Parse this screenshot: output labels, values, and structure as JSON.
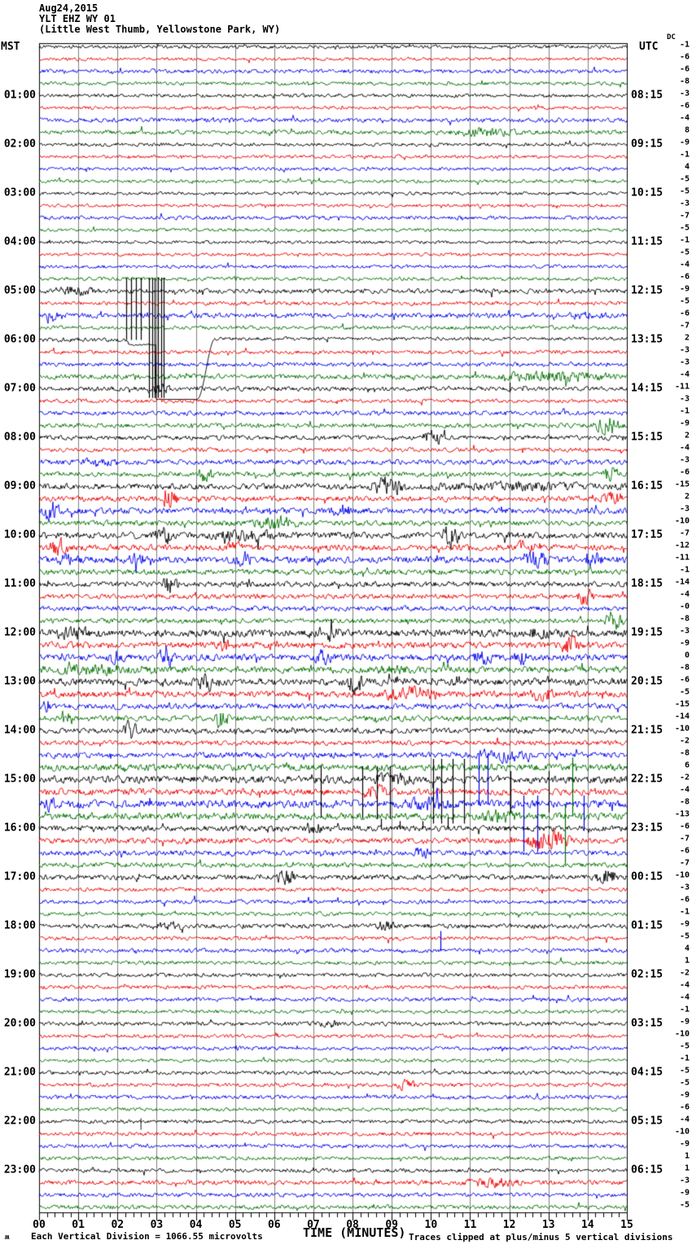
{
  "header": {
    "date": "Aug24,2015",
    "station": "YLT EHZ WY 01",
    "location": "(Little West Thumb, Yellowstone Park, WY)"
  },
  "corner_labels": {
    "left": "MST",
    "right": "UTC",
    "dc": "DC"
  },
  "footer": {
    "logo_glyph": "ʍ",
    "scale_note": "Each Vertical Division = 1066.55 microvolts",
    "clip_note": "Traces clipped at plus/minus 5 vertical divisions"
  },
  "colors": {
    "trace_cycle": [
      "#000000",
      "#ee0000",
      "#0000ee",
      "#007000"
    ],
    "grid": "#808080",
    "border": "#000000",
    "background": "#ffffff",
    "text": "#000000"
  },
  "chart_data": {
    "type": "line",
    "subtype": "seismogram-helicorder",
    "title": "Aug24,2015 YLT EHZ WY 01 (Little West Thumb, Yellowstone Park, WY)",
    "xlabel": "TIME (MINUTES)",
    "x_range_minutes": [
      0,
      15
    ],
    "x_ticks": [
      "00",
      "01",
      "02",
      "03",
      "04",
      "05",
      "06",
      "07",
      "08",
      "09",
      "10",
      "11",
      "12",
      "13",
      "14",
      "15"
    ],
    "minor_ticks_per_minute": 5,
    "lines_per_hour": 4,
    "clip_divisions": 5,
    "division_microvolts": "1066.55",
    "left_axis": {
      "label": "MST",
      "times": [
        "01:00",
        "02:00",
        "03:00",
        "04:00",
        "05:00",
        "06:00",
        "07:00",
        "08:00",
        "09:00",
        "10:00",
        "11:00",
        "12:00",
        "13:00",
        "14:00",
        "15:00",
        "16:00",
        "17:00",
        "18:00",
        "19:00",
        "20:00",
        "21:00",
        "22:00",
        "23:00"
      ]
    },
    "right_axis": {
      "label": "UTC",
      "times": [
        "08:15",
        "09:15",
        "10:15",
        "11:15",
        "12:15",
        "13:15",
        "14:15",
        "15:15",
        "16:15",
        "17:15",
        "18:15",
        "19:15",
        "20:15",
        "21:15",
        "22:15",
        "23:15",
        "00:15",
        "01:15",
        "02:15",
        "03:15",
        "04:15",
        "05:15",
        "06:15"
      ]
    },
    "notable_events": [
      "clipped telemetry spike cluster minutes 2.2-3.2 spanning 05:00-07:00 MST traces",
      "calibration step recovery on 06:00 MST trace near minute 4",
      "high microseism/noise activity 09:00-17:00 MST",
      "colored telemetry spikes minutes 7-14 on 14:30-16:45 MST traces"
    ],
    "rows": [
      {
        "dc": "-1",
        "a": 1.3
      },
      {
        "dc": "-6",
        "a": 1.2
      },
      {
        "dc": "-6",
        "a": 1.5
      },
      {
        "dc": "-8",
        "a": 1.3
      },
      {
        "dc": "-3",
        "a": 1.3
      },
      {
        "dc": "-6",
        "a": 1.2
      },
      {
        "dc": "-4",
        "a": 1.6
      },
      {
        "dc": "8",
        "a": 1.6,
        "b": [
          [
            10.4,
            12.3,
            2.6
          ]
        ]
      },
      {
        "dc": "-9",
        "a": 1.3
      },
      {
        "dc": "-1",
        "a": 1.2
      },
      {
        "dc": "4",
        "a": 1.2
      },
      {
        "dc": "-5",
        "a": 1.2
      },
      {
        "dc": "-5",
        "a": 1.2
      },
      {
        "dc": "-3",
        "a": 1.2
      },
      {
        "dc": "-7",
        "a": 1.4
      },
      {
        "dc": "-5",
        "a": 1.2
      },
      {
        "dc": "-1",
        "a": 1.2
      },
      {
        "dc": "-5",
        "a": 1.2
      },
      {
        "dc": "-4",
        "a": 1.3
      },
      {
        "dc": "-6",
        "a": 1.3
      },
      {
        "dc": "-9",
        "a": 1.7,
        "b": [
          [
            0,
            1.6,
            2.6
          ]
        ]
      },
      {
        "dc": "-5",
        "a": 1.4
      },
      {
        "dc": "-6",
        "a": 1.8,
        "b": [
          [
            0.1,
            0.5,
            3.5
          ],
          [
            13.4,
            14.6,
            2.4
          ]
        ]
      },
      {
        "dc": "-7",
        "a": 1.4
      },
      {
        "dc": "2",
        "a": 1.6,
        "cal": 1
      },
      {
        "dc": "-3",
        "a": 1.4
      },
      {
        "dc": "-3",
        "a": 1.6
      },
      {
        "dc": "-4",
        "a": 1.8,
        "b": [
          [
            11.4,
            14.9,
            3.0
          ]
        ]
      },
      {
        "dc": "-11",
        "a": 1.6,
        "b": [
          [
            2.7,
            3.4,
            3.0
          ]
        ]
      },
      {
        "dc": "-3",
        "a": 1.4
      },
      {
        "dc": "-1",
        "a": 1.6
      },
      {
        "dc": "-9",
        "a": 1.7,
        "b": [
          [
            14.1,
            14.95,
            4.5
          ]
        ]
      },
      {
        "dc": "2",
        "a": 1.7,
        "b": [
          [
            9.7,
            10.4,
            3.8
          ]
        ]
      },
      {
        "dc": "-4",
        "a": 1.5
      },
      {
        "dc": "-3",
        "a": 1.9,
        "b": [
          [
            1.0,
            2.1,
            2.6
          ]
        ]
      },
      {
        "dc": "-6",
        "a": 1.8,
        "b": [
          [
            4.05,
            4.5,
            4.5
          ],
          [
            14.3,
            14.9,
            4.0
          ]
        ]
      },
      {
        "dc": "-15",
        "a": 2.2,
        "b": [
          [
            8.4,
            9.4,
            5.0
          ],
          [
            9.4,
            15,
            3.0
          ]
        ]
      },
      {
        "dc": "2",
        "a": 2.0,
        "b": [
          [
            3.15,
            3.6,
            5.0
          ],
          [
            14.3,
            15,
            3.5
          ]
        ]
      },
      {
        "dc": "-3",
        "a": 2.2,
        "b": [
          [
            0.05,
            0.55,
            5.5
          ],
          [
            7.4,
            8.0,
            4.0
          ]
        ]
      },
      {
        "dc": "-10",
        "a": 2.0,
        "b": [
          [
            5.4,
            6.7,
            3.8
          ]
        ]
      },
      {
        "dc": "-7",
        "a": 2.4,
        "b": [
          [
            2.9,
            3.5,
            4.5
          ],
          [
            4.2,
            6.2,
            3.5
          ],
          [
            10.2,
            10.8,
            5.5
          ]
        ]
      },
      {
        "dc": "-12",
        "a": 2.2,
        "b": [
          [
            0.2,
            0.8,
            4.5
          ],
          [
            4.7,
            5.2,
            3.8
          ],
          [
            12.1,
            12.7,
            3.8
          ]
        ]
      },
      {
        "dc": "-11",
        "a": 2.4,
        "b": [
          [
            0.4,
            1.1,
            3.8
          ],
          [
            2.2,
            2.8,
            3.8
          ],
          [
            4.9,
            5.5,
            3.8
          ],
          [
            12.1,
            13.1,
            4.5
          ],
          [
            13.8,
            14.4,
            4.5
          ]
        ]
      },
      {
        "dc": "-1",
        "a": 2.0
      },
      {
        "dc": "-14",
        "a": 2.0,
        "b": [
          [
            3.1,
            3.6,
            4.8
          ]
        ]
      },
      {
        "dc": "-4",
        "a": 1.8,
        "b": [
          [
            13.7,
            14.2,
            4.5
          ]
        ]
      },
      {
        "dc": "-0",
        "a": 1.8
      },
      {
        "dc": "-8",
        "a": 1.8,
        "b": [
          [
            14.4,
            14.95,
            5.0
          ]
        ]
      },
      {
        "dc": "-3",
        "a": 2.7,
        "b": [
          [
            0.3,
            1.4,
            4.0
          ],
          [
            7.1,
            7.7,
            4.8
          ],
          [
            12.4,
            13.1,
            4.0
          ]
        ]
      },
      {
        "dc": "-9",
        "a": 2.4,
        "b": [
          [
            4.5,
            5.0,
            3.6
          ],
          [
            13.3,
            13.8,
            5.5
          ]
        ]
      },
      {
        "dc": "0",
        "a": 2.4,
        "b": [
          [
            1.7,
            2.2,
            4.0
          ],
          [
            3.0,
            3.5,
            5.5
          ],
          [
            7.0,
            7.5,
            4.2
          ],
          [
            11.0,
            11.6,
            4.2
          ],
          [
            12.1,
            12.5,
            4.2
          ]
        ]
      },
      {
        "dc": "-8",
        "a": 2.4,
        "b": [
          [
            0,
            3.1,
            3.4
          ],
          [
            8.4,
            9.6,
            3.2
          ]
        ]
      },
      {
        "dc": "-6",
        "a": 2.7,
        "b": [
          [
            4.0,
            4.5,
            5.0
          ],
          [
            7.8,
            8.3,
            6.0
          ]
        ]
      },
      {
        "dc": "-5",
        "a": 2.3,
        "b": [
          [
            8.7,
            10.3,
            4.2
          ],
          [
            12.5,
            13.2,
            4.2
          ]
        ]
      },
      {
        "dc": "-15",
        "a": 2.1,
        "b": [
          [
            0.05,
            0.35,
            4.0
          ]
        ]
      },
      {
        "dc": "-14",
        "a": 2.0,
        "b": [
          [
            0.5,
            0.9,
            4.5
          ],
          [
            4.4,
            4.9,
            4.5
          ]
        ]
      },
      {
        "dc": "-10",
        "a": 2.0,
        "b": [
          [
            2.1,
            2.6,
            4.8
          ]
        ]
      },
      {
        "dc": "-2",
        "a": 1.8
      },
      {
        "dc": "-8",
        "a": 2.2,
        "b": [
          [
            11.0,
            12.6,
            3.8
          ]
        ]
      },
      {
        "dc": "6",
        "a": 2.5
      },
      {
        "dc": "-2",
        "a": 2.7,
        "b": [
          [
            8.3,
            9.7,
            4.0
          ]
        ]
      },
      {
        "dc": "-4",
        "a": 2.4,
        "b": [
          [
            8.1,
            9.0,
            3.8
          ]
        ]
      },
      {
        "dc": "-8",
        "a": 2.8,
        "b": [
          [
            0,
            0.5,
            4.0
          ],
          [
            9.2,
            10.6,
            4.2
          ]
        ]
      },
      {
        "dc": "-13",
        "a": 2.6,
        "b": [
          [
            11.2,
            12.3,
            3.8
          ]
        ]
      },
      {
        "dc": "-6",
        "a": 2.1,
        "b": [
          [
            6.7,
            7.3,
            3.6
          ]
        ]
      },
      {
        "dc": "-7",
        "a": 2.1,
        "b": [
          [
            12.3,
            13.7,
            4.8
          ]
        ]
      },
      {
        "dc": "-6",
        "a": 1.9,
        "b": [
          [
            9.4,
            10.1,
            3.2
          ]
        ]
      },
      {
        "dc": "-7",
        "a": 1.8
      },
      {
        "dc": "-10",
        "a": 1.9,
        "b": [
          [
            6.0,
            6.6,
            3.8
          ],
          [
            14.1,
            14.8,
            4.6
          ]
        ]
      },
      {
        "dc": "-3",
        "a": 1.4
      },
      {
        "dc": "-6",
        "a": 1.5
      },
      {
        "dc": "-1",
        "a": 1.4
      },
      {
        "dc": "-9",
        "a": 1.7,
        "b": [
          [
            2.9,
            3.7,
            2.8
          ],
          [
            8.5,
            9.1,
            3.0
          ]
        ]
      },
      {
        "dc": "-5",
        "a": 1.4
      },
      {
        "dc": "4",
        "a": 1.5
      },
      {
        "dc": "1",
        "a": 1.4
      },
      {
        "dc": "-2",
        "a": 1.4
      },
      {
        "dc": "-4",
        "a": 1.4
      },
      {
        "dc": "-4",
        "a": 1.5
      },
      {
        "dc": "-1",
        "a": 1.3
      },
      {
        "dc": "-9",
        "a": 1.5,
        "b": [
          [
            7.2,
            7.7,
            2.4
          ]
        ]
      },
      {
        "dc": "-10",
        "a": 1.3
      },
      {
        "dc": "-5",
        "a": 1.4
      },
      {
        "dc": "-1",
        "a": 1.3
      },
      {
        "dc": "-5",
        "a": 1.4
      },
      {
        "dc": "-5",
        "a": 1.4,
        "b": [
          [
            9.1,
            9.7,
            3.0
          ]
        ]
      },
      {
        "dc": "-9",
        "a": 1.4
      },
      {
        "dc": "-6",
        "a": 1.3
      },
      {
        "dc": "-4",
        "a": 1.4,
        "s": [
          [
            2.6,
            4,
            10
          ]
        ]
      },
      {
        "dc": "-10",
        "a": 1.4
      },
      {
        "dc": "-9",
        "a": 1.4
      },
      {
        "dc": "1",
        "a": 1.3
      },
      {
        "dc": "1",
        "a": 1.4
      },
      {
        "dc": "-3",
        "a": 1.7,
        "b": [
          [
            10.7,
            12.4,
            2.8
          ]
        ]
      },
      {
        "dc": "-9",
        "a": 1.5
      },
      {
        "dc": "-5",
        "a": 1.5
      }
    ],
    "vlines": [
      [
        2.22,
        18.9,
        24.0,
        0
      ],
      [
        2.35,
        18.9,
        24.0,
        0
      ],
      [
        2.47,
        18.9,
        24.0,
        0
      ],
      [
        2.6,
        18.9,
        24.0,
        0
      ],
      [
        2.8,
        18.9,
        28.75,
        0
      ],
      [
        2.88,
        18.9,
        28.75,
        0
      ],
      [
        2.96,
        18.9,
        28.75,
        0
      ],
      [
        3.04,
        18.9,
        28.75,
        0
      ],
      [
        3.11,
        18.9,
        28.75,
        0
      ],
      [
        3.17,
        18.9,
        28.75,
        0
      ],
      [
        7.18,
        58.8,
        63.1,
        0
      ],
      [
        8.25,
        58.9,
        63.2,
        0
      ],
      [
        8.63,
        58.9,
        63.2,
        0
      ],
      [
        8.96,
        58.9,
        63.2,
        0
      ],
      [
        10.06,
        58.3,
        63.6,
        0
      ],
      [
        10.26,
        58.3,
        63.6,
        0
      ],
      [
        10.55,
        58.3,
        63.6,
        0
      ],
      [
        10.85,
        58.3,
        63.6,
        0
      ],
      [
        12.02,
        59.3,
        62.7,
        0
      ],
      [
        13.0,
        59.3,
        62.7,
        0
      ],
      [
        11.22,
        57.9,
        61.9,
        2
      ],
      [
        11.45,
        57.9,
        61.9,
        2
      ],
      [
        12.37,
        61.3,
        65.9,
        2
      ],
      [
        12.72,
        61.3,
        65.9,
        2
      ],
      [
        13.9,
        61.3,
        64.2,
        2
      ],
      [
        13.6,
        58.2,
        63.0,
        3
      ],
      [
        13.42,
        62.0,
        66.9,
        3
      ],
      [
        12.0,
        27.5,
        28.3,
        0
      ],
      [
        8.72,
        63.2,
        64.05,
        0
      ],
      [
        9.2,
        63.4,
        64.05,
        0
      ],
      [
        9.79,
        63.4,
        64.05,
        0
      ],
      [
        10.42,
        63.1,
        64.1,
        0
      ],
      [
        10.25,
        72.4,
        74.05,
        2
      ]
    ]
  }
}
